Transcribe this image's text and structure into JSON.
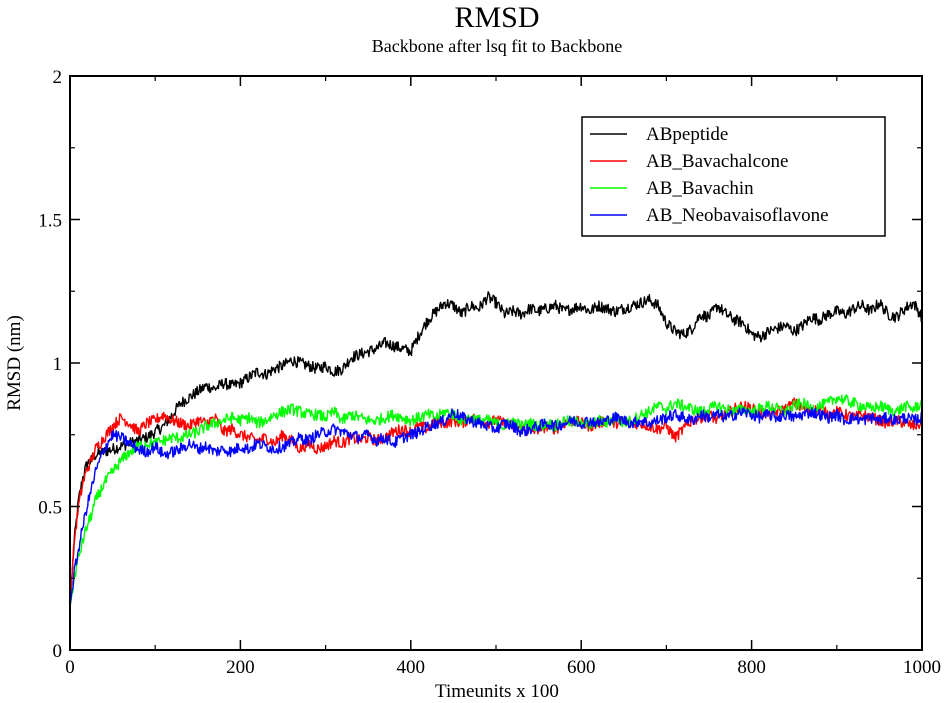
{
  "chart_data": {
    "type": "line",
    "title": "RMSD",
    "subtitle": "Backbone after lsq fit to Backbone",
    "xlabel": "Timeunits x 100",
    "ylabel": "RMSD (nm)",
    "xlim": [
      0,
      1000
    ],
    "ylim": [
      0,
      2
    ],
    "x_ticks": [
      0,
      200,
      400,
      600,
      800,
      1000
    ],
    "x_tick_labels": [
      "0",
      "200",
      "400",
      "600",
      "800",
      "1000"
    ],
    "y_ticks": [
      0,
      0.5,
      1,
      1.5,
      2
    ],
    "y_tick_labels": [
      "0",
      "0.5",
      "1",
      "1.5",
      "2"
    ],
    "grid": false,
    "legend_position": "top-right",
    "x": [
      0,
      5,
      10,
      15,
      20,
      25,
      30,
      40,
      50,
      60,
      70,
      80,
      90,
      100,
      110,
      120,
      130,
      140,
      150,
      160,
      170,
      180,
      190,
      200,
      210,
      220,
      230,
      240,
      250,
      260,
      270,
      280,
      290,
      300,
      310,
      320,
      330,
      340,
      350,
      360,
      370,
      380,
      390,
      400,
      410,
      420,
      430,
      440,
      450,
      460,
      470,
      480,
      490,
      500,
      510,
      520,
      530,
      540,
      550,
      560,
      570,
      580,
      590,
      600,
      610,
      620,
      630,
      640,
      650,
      660,
      670,
      680,
      690,
      700,
      710,
      720,
      730,
      740,
      750,
      760,
      770,
      780,
      790,
      800,
      810,
      820,
      830,
      840,
      850,
      860,
      870,
      880,
      890,
      900,
      910,
      920,
      930,
      940,
      950,
      960,
      970,
      980,
      990,
      1000
    ],
    "series": [
      {
        "name": "ABpeptide",
        "color": "#000000",
        "values": [
          0.15,
          0.38,
          0.52,
          0.6,
          0.65,
          0.66,
          0.68,
          0.69,
          0.7,
          0.71,
          0.72,
          0.73,
          0.74,
          0.76,
          0.78,
          0.82,
          0.86,
          0.88,
          0.9,
          0.92,
          0.91,
          0.93,
          0.92,
          0.93,
          0.95,
          0.97,
          0.96,
          0.98,
          0.99,
          1.01,
          1.0,
          0.99,
          0.98,
          0.99,
          0.97,
          0.98,
          1.02,
          1.03,
          1.04,
          1.05,
          1.07,
          1.06,
          1.05,
          1.04,
          1.1,
          1.15,
          1.18,
          1.21,
          1.2,
          1.17,
          1.2,
          1.19,
          1.23,
          1.21,
          1.17,
          1.18,
          1.17,
          1.19,
          1.18,
          1.19,
          1.2,
          1.18,
          1.19,
          1.2,
          1.18,
          1.2,
          1.19,
          1.18,
          1.19,
          1.2,
          1.21,
          1.22,
          1.2,
          1.14,
          1.11,
          1.1,
          1.12,
          1.17,
          1.16,
          1.2,
          1.17,
          1.15,
          1.14,
          1.1,
          1.09,
          1.11,
          1.12,
          1.13,
          1.11,
          1.13,
          1.16,
          1.15,
          1.17,
          1.18,
          1.17,
          1.19,
          1.2,
          1.18,
          1.21,
          1.17,
          1.16,
          1.19,
          1.21,
          1.16
        ]
      },
      {
        "name": "AB_Bavachalcone",
        "color": "#ff0000",
        "values": [
          0.15,
          0.38,
          0.5,
          0.58,
          0.63,
          0.66,
          0.7,
          0.74,
          0.78,
          0.81,
          0.79,
          0.76,
          0.79,
          0.8,
          0.82,
          0.8,
          0.79,
          0.78,
          0.8,
          0.79,
          0.81,
          0.76,
          0.77,
          0.75,
          0.74,
          0.73,
          0.74,
          0.72,
          0.75,
          0.73,
          0.7,
          0.72,
          0.7,
          0.71,
          0.73,
          0.72,
          0.74,
          0.73,
          0.74,
          0.73,
          0.74,
          0.76,
          0.77,
          0.76,
          0.78,
          0.77,
          0.8,
          0.79,
          0.8,
          0.79,
          0.81,
          0.8,
          0.79,
          0.8,
          0.79,
          0.78,
          0.77,
          0.76,
          0.77,
          0.78,
          0.77,
          0.79,
          0.8,
          0.79,
          0.78,
          0.79,
          0.8,
          0.79,
          0.8,
          0.79,
          0.79,
          0.78,
          0.77,
          0.78,
          0.74,
          0.77,
          0.8,
          0.81,
          0.82,
          0.8,
          0.82,
          0.84,
          0.85,
          0.84,
          0.83,
          0.82,
          0.83,
          0.84,
          0.86,
          0.84,
          0.83,
          0.84,
          0.82,
          0.83,
          0.82,
          0.81,
          0.82,
          0.81,
          0.8,
          0.79,
          0.8,
          0.79,
          0.78,
          0.79
        ]
      },
      {
        "name": "AB_Bavachin",
        "color": "#00ff00",
        "values": [
          0.15,
          0.25,
          0.32,
          0.38,
          0.43,
          0.47,
          0.52,
          0.58,
          0.62,
          0.66,
          0.69,
          0.71,
          0.72,
          0.72,
          0.73,
          0.74,
          0.74,
          0.75,
          0.76,
          0.78,
          0.79,
          0.8,
          0.81,
          0.8,
          0.81,
          0.79,
          0.8,
          0.82,
          0.83,
          0.84,
          0.83,
          0.82,
          0.82,
          0.81,
          0.83,
          0.8,
          0.82,
          0.81,
          0.8,
          0.8,
          0.81,
          0.82,
          0.81,
          0.8,
          0.81,
          0.82,
          0.81,
          0.83,
          0.82,
          0.8,
          0.81,
          0.8,
          0.8,
          0.79,
          0.78,
          0.8,
          0.78,
          0.79,
          0.78,
          0.79,
          0.78,
          0.8,
          0.79,
          0.8,
          0.78,
          0.8,
          0.79,
          0.81,
          0.79,
          0.8,
          0.82,
          0.83,
          0.85,
          0.84,
          0.86,
          0.85,
          0.84,
          0.83,
          0.84,
          0.85,
          0.84,
          0.83,
          0.84,
          0.83,
          0.84,
          0.85,
          0.84,
          0.83,
          0.85,
          0.86,
          0.84,
          0.85,
          0.86,
          0.88,
          0.87,
          0.86,
          0.85,
          0.84,
          0.85,
          0.84,
          0.83,
          0.85,
          0.84,
          0.86
        ]
      },
      {
        "name": "AB_Neobavaisoflavone",
        "color": "#0000ff",
        "values": [
          0.15,
          0.27,
          0.35,
          0.43,
          0.5,
          0.56,
          0.62,
          0.7,
          0.75,
          0.74,
          0.72,
          0.7,
          0.69,
          0.71,
          0.68,
          0.69,
          0.7,
          0.72,
          0.7,
          0.71,
          0.69,
          0.7,
          0.69,
          0.71,
          0.7,
          0.72,
          0.71,
          0.7,
          0.71,
          0.72,
          0.74,
          0.73,
          0.75,
          0.76,
          0.77,
          0.76,
          0.75,
          0.74,
          0.75,
          0.73,
          0.74,
          0.72,
          0.74,
          0.75,
          0.76,
          0.78,
          0.79,
          0.8,
          0.83,
          0.81,
          0.8,
          0.79,
          0.78,
          0.77,
          0.79,
          0.78,
          0.76,
          0.77,
          0.78,
          0.79,
          0.78,
          0.79,
          0.8,
          0.79,
          0.8,
          0.79,
          0.8,
          0.81,
          0.8,
          0.79,
          0.8,
          0.79,
          0.8,
          0.81,
          0.82,
          0.81,
          0.8,
          0.82,
          0.81,
          0.82,
          0.81,
          0.82,
          0.83,
          0.82,
          0.81,
          0.82,
          0.81,
          0.82,
          0.81,
          0.82,
          0.83,
          0.82,
          0.81,
          0.82,
          0.8,
          0.81,
          0.8,
          0.81,
          0.8,
          0.81,
          0.8,
          0.81,
          0.8,
          0.81
        ]
      }
    ]
  }
}
